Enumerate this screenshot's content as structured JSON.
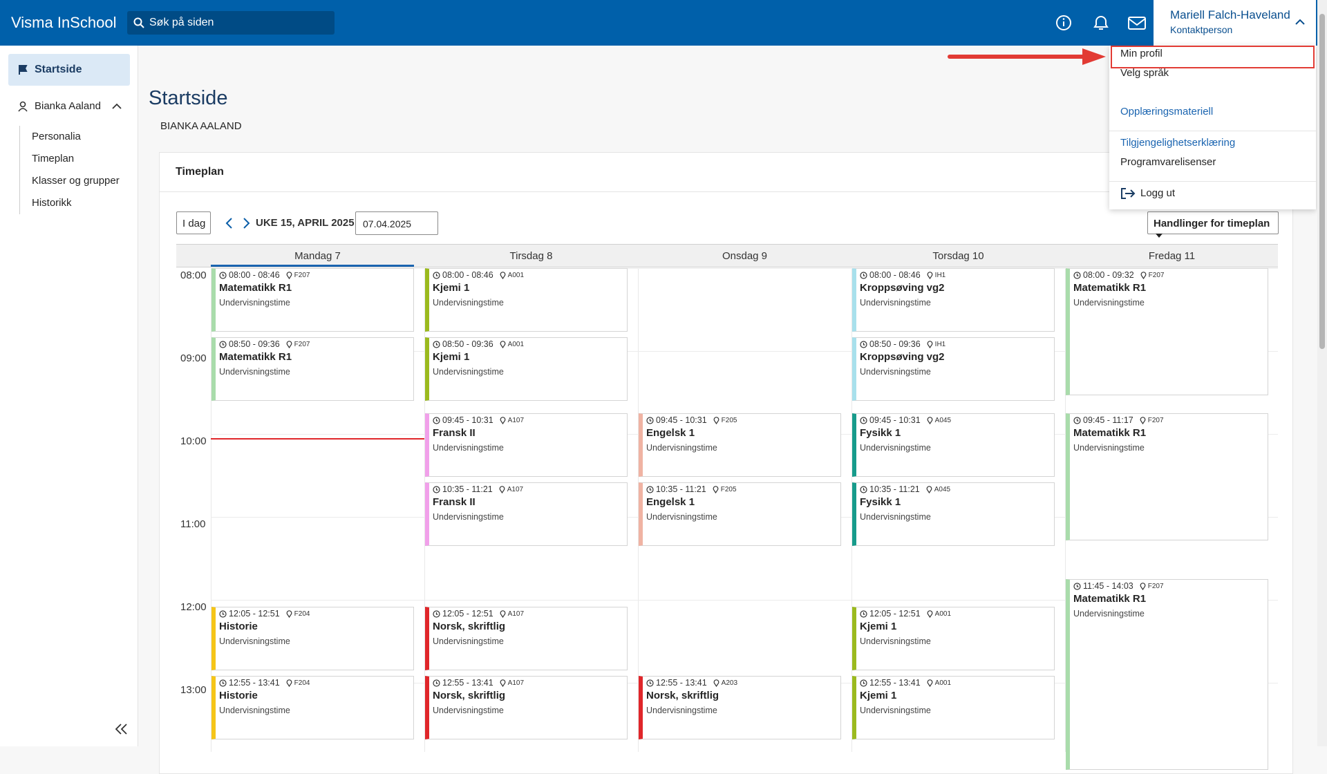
{
  "header": {
    "logo": "Visma InSchool",
    "search": "Søk på siden",
    "user_name": "Mariell Falch-Haveland",
    "user_role": "Kontaktperson"
  },
  "menu": [
    "Min profil",
    "Velg språk",
    "Opplæringsmateriell",
    "Tilgjengelighetserklæring",
    "Programvarelisenser",
    "Logg ut"
  ],
  "sidebar": {
    "active": "Startside",
    "student": "Bianka Aaland",
    "items": [
      "Personalia",
      "Timeplan",
      "Klasser og grupper",
      "Historikk"
    ]
  },
  "page": {
    "title": "Startside",
    "student": "BIANKA AALAND",
    "card_title": "Timeplan",
    "today": "I dag",
    "week": "UKE 15, APRIL 2025",
    "date": "07.04.2025",
    "actions": "Handlinger for timeplan"
  },
  "days": [
    "Mandag 7",
    "Tirsdag 8",
    "Onsdag 9",
    "Torsdag 10",
    "Fredag 11"
  ],
  "hours": [
    "08:00",
    "09:00",
    "10:00",
    "11:00",
    "12:00",
    "13:00"
  ],
  "events": [
    {
      "day": 0,
      "time": "08:00 - 08:46",
      "room": "F207",
      "subject": "Matematikk R1",
      "kind": "Undervisningstime",
      "color": "#a9dcab"
    },
    {
      "day": 0,
      "time": "08:50 - 09:36",
      "room": "F207",
      "subject": "Matematikk R1",
      "kind": "Undervisningstime",
      "color": "#a9dcab"
    },
    {
      "day": 0,
      "time": "12:05 - 12:51",
      "room": "F204",
      "subject": "Historie",
      "kind": "Undervisningstime",
      "color": "#f5c518"
    },
    {
      "day": 0,
      "time": "12:55 - 13:41",
      "room": "F204",
      "subject": "Historie",
      "kind": "Undervisningstime",
      "color": "#f5c518"
    },
    {
      "day": 1,
      "time": "08:00 - 08:46",
      "room": "A001",
      "subject": "Kjemi 1",
      "kind": "Undervisningstime",
      "color": "#9bba1e"
    },
    {
      "day": 1,
      "time": "08:50 - 09:36",
      "room": "A001",
      "subject": "Kjemi 1",
      "kind": "Undervisningstime",
      "color": "#9bba1e"
    },
    {
      "day": 1,
      "time": "09:45 - 10:31",
      "room": "A107",
      "subject": "Fransk II",
      "kind": "Undervisningstime",
      "color": "#f1a0ea"
    },
    {
      "day": 1,
      "time": "10:35 - 11:21",
      "room": "A107",
      "subject": "Fransk II",
      "kind": "Undervisningstime",
      "color": "#f1a0ea"
    },
    {
      "day": 1,
      "time": "12:05 - 12:51",
      "room": "A107",
      "subject": "Norsk, skriftlig",
      "kind": "Undervisningstime",
      "color": "#e0262a"
    },
    {
      "day": 1,
      "time": "12:55 - 13:41",
      "room": "A107",
      "subject": "Norsk, skriftlig",
      "kind": "Undervisningstime",
      "color": "#e0262a"
    },
    {
      "day": 2,
      "time": "09:45 - 10:31",
      "room": "F205",
      "subject": "Engelsk 1",
      "kind": "Undervisningstime",
      "color": "#f0b3a3"
    },
    {
      "day": 2,
      "time": "10:35 - 11:21",
      "room": "F205",
      "subject": "Engelsk 1",
      "kind": "Undervisningstime",
      "color": "#f0b3a3"
    },
    {
      "day": 2,
      "time": "12:55 - 13:41",
      "room": "A203",
      "subject": "Norsk, skriftlig",
      "kind": "Undervisningstime",
      "color": "#e0262a"
    },
    {
      "day": 3,
      "time": "08:00 - 08:46",
      "room": "IH1",
      "subject": "Kroppsøving vg2",
      "kind": "Undervisningstime",
      "color": "#a8e0ec"
    },
    {
      "day": 3,
      "time": "08:50 - 09:36",
      "room": "IH1",
      "subject": "Kroppsøving vg2",
      "kind": "Undervisningstime",
      "color": "#a8e0ec"
    },
    {
      "day": 3,
      "time": "09:45 - 10:31",
      "room": "A045",
      "subject": "Fysikk 1",
      "kind": "Undervisningstime",
      "color": "#179b8b"
    },
    {
      "day": 3,
      "time": "10:35 - 11:21",
      "room": "A045",
      "subject": "Fysikk 1",
      "kind": "Undervisningstime",
      "color": "#179b8b"
    },
    {
      "day": 3,
      "time": "12:05 - 12:51",
      "room": "A001",
      "subject": "Kjemi 1",
      "kind": "Undervisningstime",
      "color": "#9bba1e"
    },
    {
      "day": 3,
      "time": "12:55 - 13:41",
      "room": "A001",
      "subject": "Kjemi 1",
      "kind": "Undervisningstime",
      "color": "#9bba1e"
    },
    {
      "day": 4,
      "time": "08:00 - 09:32",
      "room": "F207",
      "subject": "Matematikk R1",
      "kind": "Undervisningstime",
      "color": "#a9dcab"
    },
    {
      "day": 4,
      "time": "09:45 - 11:17",
      "room": "F207",
      "subject": "Matematikk R1",
      "kind": "Undervisningstime",
      "color": "#a9dcab"
    },
    {
      "day": 4,
      "time": "11:45 - 14:03",
      "room": "F207",
      "subject": "Matematikk R1",
      "kind": "Undervisningstime",
      "color": "#a9dcab"
    }
  ]
}
